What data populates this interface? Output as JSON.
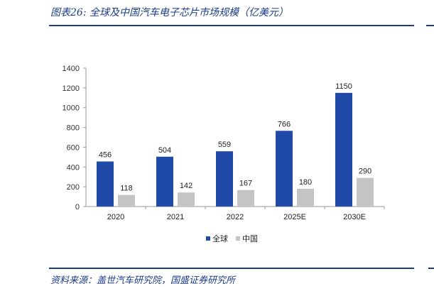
{
  "figure": {
    "title": "图表26:  全球及中国汽车电子芯片市场规模（亿美元）",
    "source": "资料来源：盖世汽车研究院，国盛证券研究所"
  },
  "colors": {
    "accent": "#1c3b87",
    "global_bar": "#1f4aa8",
    "china_bar": "#c4c4c4"
  },
  "chart_data": {
    "type": "bar",
    "categories": [
      "2020",
      "2021",
      "2022",
      "2025E",
      "2030E"
    ],
    "series": [
      {
        "name": "全球",
        "values": [
          456,
          504,
          559,
          766,
          1150
        ]
      },
      {
        "name": "中国",
        "values": [
          118,
          142,
          167,
          180,
          290
        ]
      }
    ],
    "ylim": [
      0,
      1400
    ],
    "yticks": [
      0,
      200,
      400,
      600,
      800,
      1000,
      1200,
      1400
    ],
    "grid": false,
    "legend_position": "bottom-center"
  }
}
